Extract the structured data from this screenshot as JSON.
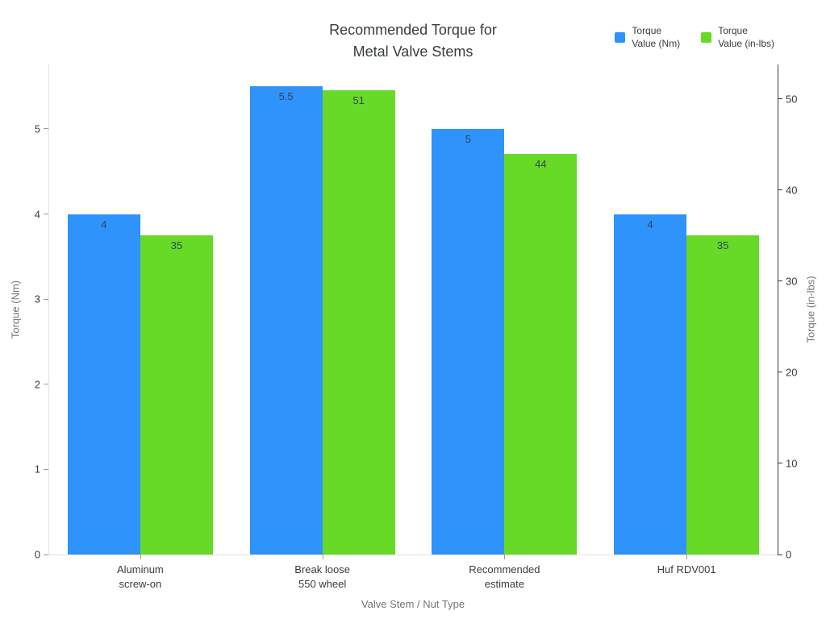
{
  "title": {
    "lines": [
      "Recommended Torque for",
      "Metal Valve Stems"
    ]
  },
  "chart_data": {
    "type": "bar",
    "title": "Recommended Torque for Metal Valve Stems",
    "xlabel": "Valve Stem / Nut Type",
    "grid": false,
    "legend_position": "top-right",
    "categories": [
      [
        "Aluminum",
        "screw-on"
      ],
      [
        "Break loose",
        "550 wheel"
      ],
      [
        "Recommended",
        "estimate"
      ],
      [
        "Huf RDV001"
      ]
    ],
    "series": [
      {
        "name": "Torque Value (Nm)",
        "legend_lines": [
          "Torque",
          "Value (Nm)"
        ],
        "axis": "left",
        "color": "#2E93FA",
        "values": [
          4,
          5.5,
          5,
          4
        ]
      },
      {
        "name": "Torque Value (in-lbs)",
        "legend_lines": [
          "Torque",
          "Value (in-lbs)"
        ],
        "axis": "right",
        "color": "#66DA26",
        "values": [
          35,
          51,
          44,
          35
        ]
      }
    ],
    "y_left": {
      "label": "Torque (Nm)",
      "ticks": [
        0,
        1,
        2,
        3,
        4,
        5
      ],
      "max": 5.757
    },
    "y_right": {
      "label": "Torque (in-lbs)",
      "ticks": [
        0,
        10,
        20,
        30,
        40,
        50
      ],
      "max": 53.8
    },
    "value_label_color": "#304758"
  }
}
